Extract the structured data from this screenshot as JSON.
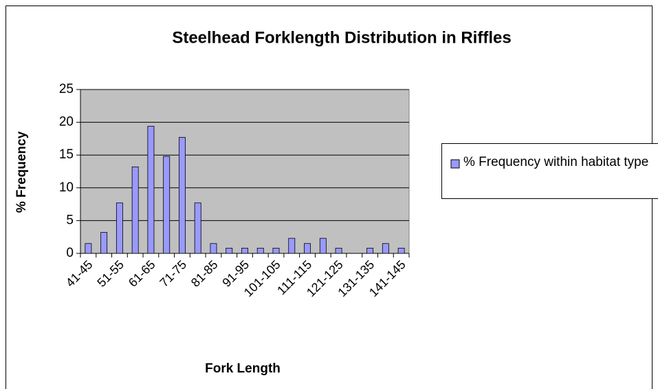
{
  "chart_data": {
    "type": "bar",
    "title": "Steelhead Forklength Distribution in Riffles",
    "x_label": "Fork Length",
    "y_label": "% Frequency",
    "categories": [
      "41-45",
      null,
      "51-55",
      null,
      "61-65",
      null,
      "71-75",
      null,
      "81-85",
      null,
      "91-95",
      null,
      "101-105",
      null,
      "111-115",
      null,
      "121-125",
      null,
      "131-135",
      null,
      "141-145"
    ],
    "series": [
      {
        "name": "% Frequency within habitat type",
        "color": "#9999ff",
        "values": [
          1.5,
          3.2,
          7.7,
          13.2,
          19.4,
          14.8,
          17.7,
          7.7,
          1.5,
          0.8,
          0.8,
          0.8,
          0.8,
          2.3,
          1.5,
          2.3,
          0.8,
          0,
          0.8,
          1.5,
          0.8
        ]
      }
    ],
    "ylim": [
      0,
      25
    ],
    "yticks": [
      0,
      5,
      10,
      15,
      20,
      25
    ],
    "grid": true,
    "legend": "right"
  }
}
